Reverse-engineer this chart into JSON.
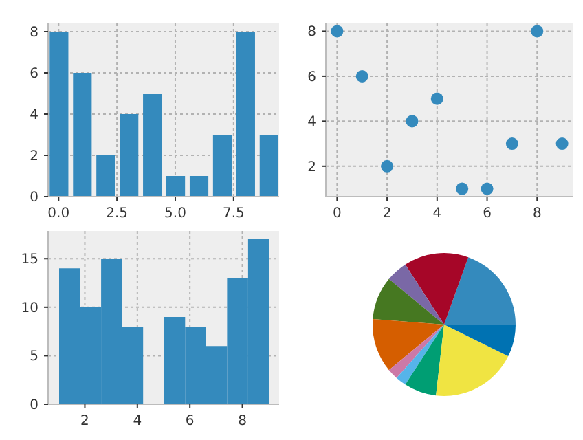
{
  "chart_data": [
    {
      "type": "bar",
      "x": [
        0,
        1,
        2,
        3,
        4,
        5,
        6,
        7,
        8,
        9
      ],
      "values": [
        8,
        6,
        2,
        4,
        5,
        1,
        1,
        3,
        8,
        3
      ],
      "color": "#348abd",
      "xlim": [
        -0.45,
        9.45
      ],
      "xticks": [
        {
          "value": 0,
          "label": "0.0"
        },
        {
          "value": 2.5,
          "label": "2.5"
        },
        {
          "value": 5,
          "label": "5.0"
        },
        {
          "value": 7.5,
          "label": "7.5"
        }
      ],
      "ylim": [
        0,
        8.4
      ],
      "yticks": [
        0,
        2,
        4,
        6,
        8
      ],
      "grid": true
    },
    {
      "type": "scatter",
      "x": [
        0,
        1,
        2,
        3,
        4,
        5,
        6,
        7,
        8,
        9
      ],
      "values": [
        8,
        6,
        2,
        4,
        5,
        1,
        1,
        3,
        8,
        3
      ],
      "color": "#348abd",
      "marker": "circle",
      "xlim": [
        -0.45,
        9.45
      ],
      "xticks": [
        0,
        2,
        4,
        6,
        8
      ],
      "ylim": [
        0.65,
        8.35
      ],
      "yticks": [
        2,
        4,
        6,
        8
      ],
      "grid": true
    },
    {
      "type": "histogram",
      "bins": [
        1,
        1.8,
        2.6,
        3.4,
        4.2,
        5,
        5.8,
        6.6,
        7.4,
        8.2,
        9
      ],
      "values": [
        14,
        10,
        15,
        8,
        0,
        9,
        8,
        6,
        13,
        17
      ],
      "color": "#348abd",
      "xlim": [
        0.6,
        9.4
      ],
      "xticks": [
        2,
        4,
        6,
        8
      ],
      "ylim": [
        0,
        17.85
      ],
      "yticks": [
        0,
        5,
        10,
        15
      ],
      "grid": true
    },
    {
      "type": "pie",
      "categories": [
        null,
        null,
        null,
        null,
        null,
        null,
        null,
        null,
        null,
        null
      ],
      "values": [
        19.51,
        14.63,
        4.88,
        9.76,
        12.2,
        2.44,
        2.44,
        7.32,
        19.51,
        7.31
      ],
      "colors": [
        "#348abd",
        "#a60628",
        "#7a68a6",
        "#467821",
        "#d55e00",
        "#cc79a7",
        "#56b4e9",
        "#009e73",
        "#f0e442",
        "#0072b2"
      ]
    }
  ]
}
